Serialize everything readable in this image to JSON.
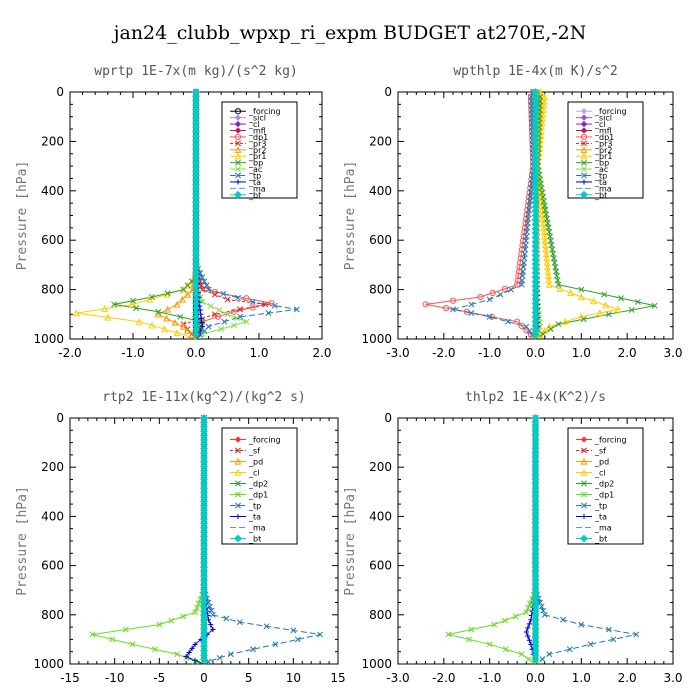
{
  "figure": {
    "title": "jan24_clubb_wpxp_ri_expm  BUDGET at270E,-2N"
  },
  "chart_data": [
    {
      "id": "wprtp",
      "type": "line",
      "title": "wprtp  1E-7x(m kg)/(s^2 kg)",
      "ylabel": "Pressure [hPa]",
      "xlim": [
        -2.0,
        2.0
      ],
      "ylim": [
        1000,
        0
      ],
      "xticks": [
        "-2.0",
        "-1.0",
        "0.0",
        "1.0",
        "2.0"
      ],
      "xtick_values": [
        -2,
        -1,
        0,
        1,
        2
      ],
      "yticks": [
        "0",
        "200",
        "400",
        "600",
        "800",
        "1000"
      ],
      "ytick_values": [
        0,
        200,
        400,
        600,
        800,
        1000
      ],
      "series": [
        {
          "name": "_forcing",
          "color": "#000000",
          "marker": "o",
          "dash": "",
          "x": [
            0,
            0,
            0,
            0,
            0,
            0,
            0,
            0,
            0,
            0,
            0,
            0
          ],
          "y": [
            0,
            100,
            200,
            300,
            400,
            500,
            600,
            700,
            800,
            850,
            900,
            1000
          ]
        },
        {
          "name": "_sicl",
          "color": "#b58ae6",
          "marker": "d",
          "dash": "",
          "x": [
            0,
            0,
            0,
            0
          ],
          "y": [
            0,
            400,
            800,
            1000
          ]
        },
        {
          "name": "_cl",
          "color": "#7a2bbf",
          "marker": "d",
          "dash": "",
          "x": [
            0,
            0,
            0,
            0
          ],
          "y": [
            0,
            400,
            800,
            1000
          ]
        },
        {
          "name": "_mfl",
          "color": "#c2185b",
          "marker": "d",
          "dash": "",
          "x": [
            0,
            0,
            0,
            0
          ],
          "y": [
            0,
            400,
            800,
            1000
          ]
        },
        {
          "name": "_dp1",
          "color": "#ff5555",
          "marker": "o",
          "dash": "",
          "x": [
            0,
            0,
            0.05,
            0.3,
            0.8,
            1.2,
            0.6,
            0.1,
            0
          ],
          "y": [
            0,
            700,
            780,
            810,
            835,
            855,
            890,
            930,
            1000
          ]
        },
        {
          "name": "_pr3",
          "color": "#e41a1c",
          "marker": "x",
          "dash": "3,2",
          "x": [
            0,
            0,
            0.1,
            0.5,
            1.1,
            0.3,
            -0.2,
            0
          ],
          "y": [
            0,
            700,
            800,
            840,
            860,
            900,
            940,
            1000
          ]
        },
        {
          "name": "_pr2",
          "color": "#ff9900",
          "marker": "t",
          "dash": "",
          "x": [
            0,
            0,
            -0.05,
            -0.3,
            -0.6,
            -0.2,
            0
          ],
          "y": [
            0,
            700,
            800,
            860,
            900,
            950,
            1000
          ]
        },
        {
          "name": "_pr1",
          "color": "#ffcc00",
          "marker": "t",
          "dash": "",
          "x": [
            0,
            0,
            -0.2,
            -1.0,
            -1.9,
            -0.9,
            -0.3,
            0
          ],
          "y": [
            0,
            750,
            800,
            860,
            895,
            930,
            975,
            1000
          ]
        },
        {
          "name": "_bp",
          "color": "#2ca02c",
          "marker": "x",
          "dash": "",
          "x": [
            0,
            0,
            -0.2,
            -0.7,
            -1.3,
            -0.6,
            0.1,
            0
          ],
          "y": [
            0,
            750,
            800,
            830,
            860,
            890,
            930,
            1000
          ]
        },
        {
          "name": "_ac",
          "color": "#88dd44",
          "marker": "x",
          "dash": "",
          "x": [
            0,
            0,
            0.1,
            0.5,
            0.8,
            0.4,
            0.1,
            0
          ],
          "y": [
            0,
            780,
            850,
            900,
            930,
            960,
            980,
            1000
          ]
        },
        {
          "name": "_tp",
          "color": "#1f77b4",
          "marker": "x",
          "dash": "6,3",
          "x": [
            0,
            0,
            0.2,
            0.9,
            1.6,
            0.7,
            0.2,
            0
          ],
          "y": [
            0,
            700,
            800,
            850,
            880,
            910,
            950,
            1000
          ]
        },
        {
          "name": "_ta",
          "color": "#0000cc",
          "marker": "+",
          "dash": "",
          "x": [
            0,
            0,
            0.05,
            0.1,
            0
          ],
          "y": [
            0,
            700,
            850,
            950,
            1000
          ]
        },
        {
          "name": "_ma",
          "color": "#5f9ea0",
          "marker": "none",
          "dash": "6,3",
          "x": [
            0,
            0,
            0
          ],
          "y": [
            0,
            500,
            1000
          ]
        },
        {
          "name": "_bt",
          "color": "#00cccc",
          "marker": "D",
          "dash": "",
          "x": [
            0,
            0,
            0
          ],
          "y": [
            0,
            500,
            1000
          ]
        }
      ]
    },
    {
      "id": "wpthlp",
      "type": "line",
      "title": "wpthlp  1E-4x(m K)/s^2",
      "ylabel": "Pressure [hPa]",
      "xlim": [
        -3.0,
        3.0
      ],
      "ylim": [
        1000,
        0
      ],
      "xticks": [
        "-3.0",
        "-2.0",
        "-1.0",
        "0.0",
        "1.0",
        "2.0",
        "3.0"
      ],
      "xtick_values": [
        -3,
        -2,
        -1,
        0,
        1,
        2,
        3
      ],
      "yticks": [
        "0",
        "200",
        "400",
        "600",
        "800",
        "1000"
      ],
      "ytick_values": [
        0,
        200,
        400,
        600,
        800,
        1000
      ],
      "series": [
        {
          "name": "_forcing",
          "color": "#c8a2e0",
          "marker": "d",
          "dash": "",
          "x": [
            0,
            0,
            0
          ],
          "y": [
            0,
            500,
            1000
          ]
        },
        {
          "name": "_sicl",
          "color": "#9b59b6",
          "marker": "d",
          "dash": "",
          "x": [
            0,
            0,
            0
          ],
          "y": [
            0,
            500,
            1000
          ]
        },
        {
          "name": "_cl",
          "color": "#7a2bbf",
          "marker": "d",
          "dash": "",
          "x": [
            0,
            0,
            0
          ],
          "y": [
            0,
            500,
            1000
          ]
        },
        {
          "name": "_mfl",
          "color": "#c2185b",
          "marker": "d",
          "dash": "",
          "x": [
            0,
            0,
            0
          ],
          "y": [
            0,
            500,
            1000
          ]
        },
        {
          "name": "_dp1",
          "color": "#ff5555",
          "marker": "o",
          "dash": "",
          "x": [
            -0.05,
            -0.1,
            -0.05,
            -0.4,
            -1.2,
            -2.4,
            -1.5,
            -0.4,
            0
          ],
          "y": [
            0,
            20,
            300,
            780,
            830,
            860,
            890,
            930,
            1000
          ]
        },
        {
          "name": "_pr3",
          "color": "#e41a1c",
          "marker": "x",
          "dash": "3,2",
          "x": [
            0.05,
            0.1,
            0.05,
            0
          ],
          "y": [
            0,
            20,
            300,
            1000
          ]
        },
        {
          "name": "_pr2",
          "color": "#ff9900",
          "marker": "t",
          "dash": "",
          "x": [
            0.05,
            0.1,
            0.05,
            0
          ],
          "y": [
            0,
            20,
            300,
            1000
          ]
        },
        {
          "name": "_pr1",
          "color": "#ffcc00",
          "marker": "t",
          "dash": "",
          "x": [
            0.1,
            0.2,
            0.05,
            0.3,
            1.0,
            1.8,
            1.0,
            0.3,
            0
          ],
          "y": [
            0,
            20,
            300,
            780,
            830,
            880,
            910,
            950,
            1000
          ]
        },
        {
          "name": "_bp",
          "color": "#2ca02c",
          "marker": "x",
          "dash": "",
          "x": [
            0,
            0.1,
            0.05,
            0.5,
            1.5,
            2.6,
            1.6,
            0.5,
            0
          ],
          "y": [
            0,
            20,
            300,
            780,
            820,
            865,
            900,
            940,
            1000
          ]
        },
        {
          "name": "_ac",
          "color": "#88dd44",
          "marker": "x",
          "dash": "",
          "x": [
            0,
            0,
            0.05,
            0.1,
            0
          ],
          "y": [
            0,
            300,
            850,
            950,
            1000
          ]
        },
        {
          "name": "_tp",
          "color": "#1f77b4",
          "marker": "x",
          "dash": "6,3",
          "x": [
            -0.05,
            -0.1,
            -0.05,
            -0.3,
            -1.0,
            -1.8,
            -1.0,
            -0.2,
            0
          ],
          "y": [
            0,
            20,
            300,
            780,
            840,
            880,
            910,
            950,
            1000
          ]
        },
        {
          "name": "_ta",
          "color": "#0000cc",
          "marker": "+",
          "dash": "",
          "x": [
            0,
            0,
            0.05,
            0
          ],
          "y": [
            0,
            300,
            950,
            1000
          ]
        },
        {
          "name": "_ma",
          "color": "#5f9ea0",
          "marker": "none",
          "dash": "6,3",
          "x": [
            0,
            0,
            0
          ],
          "y": [
            0,
            500,
            1000
          ]
        },
        {
          "name": "_bt",
          "color": "#00cccc",
          "marker": "D",
          "dash": "",
          "x": [
            0,
            0,
            0
          ],
          "y": [
            0,
            500,
            1000
          ]
        }
      ]
    },
    {
      "id": "rtp2",
      "type": "line",
      "title": "rtp2  1E-11x(kg^2)/(kg^2 s)",
      "ylabel": "Pressure [hPa]",
      "xlim": [
        -15,
        15
      ],
      "ylim": [
        1000,
        0
      ],
      "xticks": [
        "-15",
        "-10",
        "-5",
        "0",
        "5",
        "10",
        "15"
      ],
      "xtick_values": [
        -15,
        -10,
        -5,
        0,
        5,
        10,
        15
      ],
      "yticks": [
        "0",
        "200",
        "400",
        "600",
        "800",
        "1000"
      ],
      "ytick_values": [
        0,
        200,
        400,
        600,
        800,
        1000
      ],
      "series": [
        {
          "name": "_forcing",
          "color": "#ff3333",
          "marker": "d",
          "dash": "",
          "x": [
            0,
            0,
            0
          ],
          "y": [
            0,
            500,
            1000
          ]
        },
        {
          "name": "_sf",
          "color": "#e41a1c",
          "marker": "x",
          "dash": "3,2",
          "x": [
            0,
            0,
            0
          ],
          "y": [
            0,
            500,
            1000
          ]
        },
        {
          "name": "_pd",
          "color": "#ff9900",
          "marker": "t",
          "dash": "",
          "x": [
            0,
            0,
            0
          ],
          "y": [
            0,
            500,
            1000
          ]
        },
        {
          "name": "_cl",
          "color": "#ffcc00",
          "marker": "t",
          "dash": "",
          "x": [
            0,
            0,
            0
          ],
          "y": [
            0,
            500,
            1000
          ]
        },
        {
          "name": "_dp2",
          "color": "#2ca02c",
          "marker": "x",
          "dash": "",
          "x": [
            0,
            0,
            0
          ],
          "y": [
            0,
            500,
            1000
          ]
        },
        {
          "name": "_dp1",
          "color": "#66dd22",
          "marker": "x",
          "dash": "",
          "x": [
            0,
            0,
            -1,
            -5,
            -12.5,
            -8,
            -3,
            -1,
            0
          ],
          "y": [
            0,
            700,
            790,
            840,
            880,
            920,
            960,
            990,
            1000
          ]
        },
        {
          "name": "_tp",
          "color": "#1f77b4",
          "marker": "x",
          "dash": "6,3",
          "x": [
            0,
            0,
            1,
            4,
            13,
            8,
            3,
            0.5,
            0
          ],
          "y": [
            0,
            700,
            800,
            830,
            880,
            920,
            960,
            990,
            1000
          ]
        },
        {
          "name": "_ta",
          "color": "#0000cc",
          "marker": "+",
          "dash": "",
          "x": [
            0,
            0,
            0.5,
            1,
            -1,
            -2,
            0
          ],
          "y": [
            0,
            700,
            820,
            860,
            920,
            970,
            1000
          ]
        },
        {
          "name": "_ma",
          "color": "#5f9ea0",
          "marker": "none",
          "dash": "6,3",
          "x": [
            0,
            0,
            0
          ],
          "y": [
            0,
            500,
            1000
          ]
        },
        {
          "name": "_bt",
          "color": "#00cccc",
          "marker": "D",
          "dash": "",
          "x": [
            0,
            0,
            0
          ],
          "y": [
            0,
            500,
            1000
          ]
        }
      ]
    },
    {
      "id": "thlp2",
      "type": "line",
      "title": "thlp2  1E-4x(K^2)/s",
      "ylabel": "Pressure [hPa]",
      "xlim": [
        -3.0,
        3.0
      ],
      "ylim": [
        1000,
        0
      ],
      "xticks": [
        "-3.0",
        "-2.0",
        "-1.0",
        "0.0",
        "1.0",
        "2.0",
        "3.0"
      ],
      "xtick_values": [
        -3,
        -2,
        -1,
        0,
        1,
        2,
        3
      ],
      "yticks": [
        "0",
        "200",
        "400",
        "600",
        "800",
        "1000"
      ],
      "ytick_values": [
        0,
        200,
        400,
        600,
        800,
        1000
      ],
      "series": [
        {
          "name": "_forcing",
          "color": "#ff3333",
          "marker": "d",
          "dash": "",
          "x": [
            0,
            0,
            0
          ],
          "y": [
            0,
            500,
            1000
          ]
        },
        {
          "name": "_sf",
          "color": "#e41a1c",
          "marker": "x",
          "dash": "3,2",
          "x": [
            0,
            0,
            0
          ],
          "y": [
            0,
            500,
            1000
          ]
        },
        {
          "name": "_pd",
          "color": "#ff9900",
          "marker": "t",
          "dash": "",
          "x": [
            0,
            0,
            0
          ],
          "y": [
            0,
            500,
            1000
          ]
        },
        {
          "name": "_cl",
          "color": "#ffcc00",
          "marker": "t",
          "dash": "",
          "x": [
            0,
            0,
            0
          ],
          "y": [
            0,
            500,
            1000
          ]
        },
        {
          "name": "_dp2",
          "color": "#2ca02c",
          "marker": "x",
          "dash": "",
          "x": [
            0,
            0,
            0
          ],
          "y": [
            0,
            500,
            1000
          ]
        },
        {
          "name": "_dp1",
          "color": "#66dd22",
          "marker": "x",
          "dash": "",
          "x": [
            0,
            0,
            -0.2,
            -0.9,
            -1.9,
            -1.0,
            -0.3,
            0
          ],
          "y": [
            0,
            700,
            790,
            840,
            880,
            920,
            960,
            1000
          ]
        },
        {
          "name": "_tp",
          "color": "#1f77b4",
          "marker": "x",
          "dash": "6,3",
          "x": [
            0,
            0,
            0.2,
            1.0,
            2.2,
            1.2,
            0.3,
            0
          ],
          "y": [
            0,
            700,
            800,
            840,
            880,
            920,
            960,
            1000
          ]
        },
        {
          "name": "_ta",
          "color": "#0000cc",
          "marker": "+",
          "dash": "",
          "x": [
            0,
            0,
            -0.1,
            -0.2,
            -0.1,
            0
          ],
          "y": [
            0,
            700,
            820,
            870,
            920,
            1000
          ]
        },
        {
          "name": "_ma",
          "color": "#5f9ea0",
          "marker": "none",
          "dash": "6,3",
          "x": [
            0,
            0,
            0
          ],
          "y": [
            0,
            500,
            1000
          ]
        },
        {
          "name": "_bt",
          "color": "#00cccc",
          "marker": "D",
          "dash": "",
          "x": [
            0,
            0,
            0
          ],
          "y": [
            0,
            500,
            1000
          ]
        }
      ]
    }
  ]
}
